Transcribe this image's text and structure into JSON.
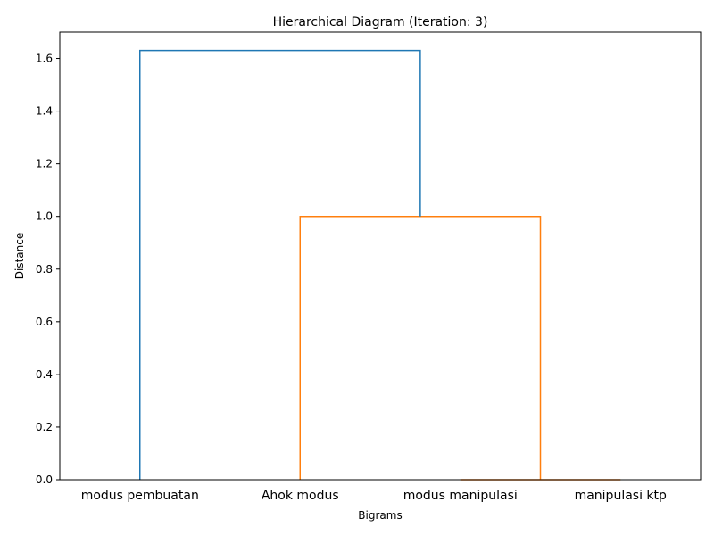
{
  "chart_data": {
    "type": "dendrogram",
    "title": "Hierarchical Diagram (Iteration: 3)",
    "xlabel": "Bigrams",
    "ylabel": "Distance",
    "leaves": [
      "modus pembuatan",
      "Ahok modus",
      "modus manipulasi",
      "manipulasi ktp"
    ],
    "ylim": [
      0,
      1.7
    ],
    "yticks": [
      "0.0",
      "0.2",
      "0.4",
      "0.6",
      "0.8",
      "1.0",
      "1.2",
      "1.4",
      "1.6"
    ],
    "merges": [
      {
        "left": "modus manipulasi",
        "right": "manipulasi ktp",
        "distance": 0.0,
        "cluster_color": "#ff7f0e"
      },
      {
        "left": "Ahok modus",
        "right": "cluster(modus manipulasi, manipulasi ktp)",
        "distance": 1.0,
        "cluster_color": "#ff7f0e"
      },
      {
        "left": "modus pembuatan",
        "right": "cluster(Ahok modus, modus manipulasi, manipulasi ktp)",
        "distance": 1.63,
        "cluster_color": "#1f77b4"
      }
    ],
    "grid": false,
    "legend": "none"
  }
}
